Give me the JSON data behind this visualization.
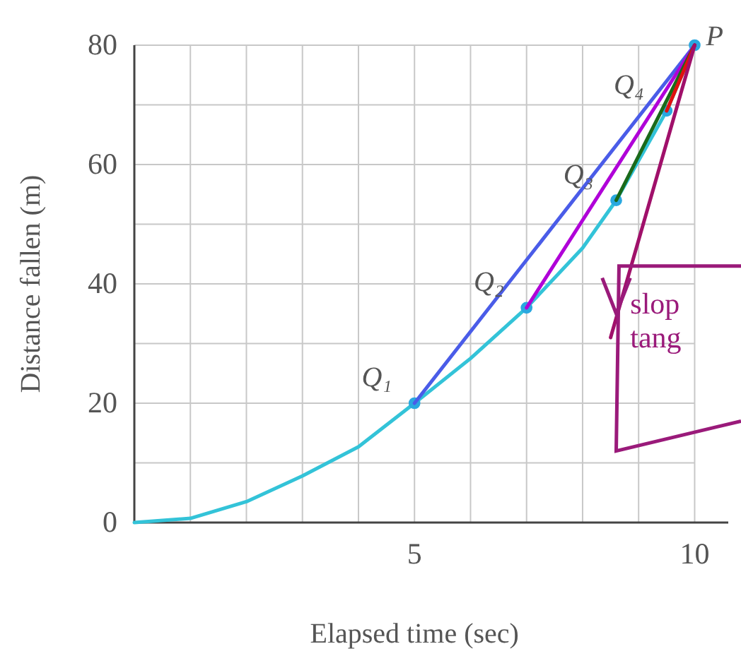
{
  "chart_data": {
    "type": "line",
    "xlabel": "Elapsed time (sec)",
    "ylabel": "Distance fallen (m)",
    "xlim": [
      0,
      10.6
    ],
    "ylim": [
      0,
      80
    ],
    "xticks": [
      {
        "value": 0,
        "label": null
      },
      {
        "value": 1,
        "label": null
      },
      {
        "value": 2,
        "label": null
      },
      {
        "value": 3,
        "label": null
      },
      {
        "value": 4,
        "label": null
      },
      5,
      {
        "value": 6,
        "label": null
      },
      {
        "value": 7,
        "label": null
      },
      {
        "value": 8,
        "label": null
      },
      {
        "value": 9,
        "label": null
      },
      10
    ],
    "yticks": [
      0,
      {
        "value": 10,
        "label": null
      },
      20,
      {
        "value": 30,
        "label": null
      },
      40,
      {
        "value": 50,
        "label": null
      },
      60,
      {
        "value": 70,
        "label": null
      },
      80
    ],
    "grid": true,
    "line_style": "solid",
    "marker": "none",
    "series": [
      {
        "color": "#33c3d8",
        "x": [
          0,
          1,
          2,
          3,
          4,
          5,
          6,
          7,
          8,
          8.6,
          9.5,
          10
        ],
        "values": [
          0,
          0.7,
          3.5,
          7.8,
          12.7,
          20,
          27.5,
          36,
          46,
          54,
          69,
          80
        ]
      },
      {
        "type": "scatter",
        "marker": "circle",
        "color": "#2aa8e0",
        "x": [
          5,
          7,
          8.6,
          9.5,
          10
        ],
        "values": [
          20,
          36,
          54,
          69,
          80
        ]
      },
      {
        "color": "#4a5ce8",
        "x": [
          5,
          10
        ],
        "values": [
          20,
          80
        ]
      },
      {
        "color": "#b000d8",
        "x": [
          7,
          10
        ],
        "values": [
          36,
          80
        ]
      },
      {
        "color": "#1a6a1a",
        "x": [
          8.6,
          10
        ],
        "values": [
          54,
          80
        ]
      },
      {
        "color": "#e01010",
        "x": [
          9.5,
          10
        ],
        "values": [
          69,
          80
        ]
      },
      {
        "color": "#a0106a",
        "x": [
          8.5,
          10
        ],
        "values": [
          31,
          80
        ]
      }
    ],
    "annotations": [
      {
        "text": "Q₁",
        "x": 5,
        "y": 20
      },
      {
        "text": "Q₂",
        "x": 7,
        "y": 36
      },
      {
        "text": "Q₃",
        "x": 8.6,
        "y": 54
      },
      {
        "text": "Q₄",
        "x": 9.5,
        "y": 69
      },
      {
        "text": "P",
        "x": 10,
        "y": 80
      },
      "slop",
      "tang"
    ]
  }
}
